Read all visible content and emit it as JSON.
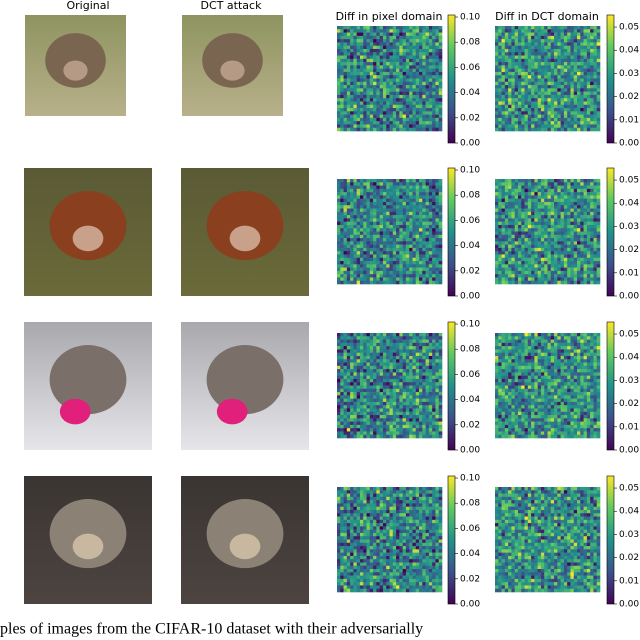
{
  "figure": {
    "column_titles": [
      "Original",
      "DCT attack",
      "Diff in pixel domain",
      "Diff in DCT domain"
    ],
    "colorbars": {
      "pixel": {
        "lim": [
          0,
          0.1016
        ],
        "ticks": [
          {
            "value": 0,
            "label": "0.00"
          },
          {
            "value": 0.02,
            "label": "0.02"
          },
          {
            "value": 0.04,
            "label": "0.04"
          },
          {
            "value": 0.06,
            "label": "0.06"
          },
          {
            "value": 0.08,
            "label": "0.08"
          },
          {
            "value": 0.1,
            "label": "0.10"
          }
        ]
      },
      "dct": {
        "lim": [
          0,
          0.0552
        ],
        "ticks": [
          {
            "value": 0,
            "label": "0.00"
          },
          {
            "value": 0.01,
            "label": "0.01"
          },
          {
            "value": 0.02,
            "label": "0.02"
          },
          {
            "value": 0.03,
            "label": "0.03"
          },
          {
            "value": 0.04,
            "label": "0.04"
          },
          {
            "value": 0.05,
            "label": "0.05"
          }
        ]
      }
    },
    "caption": "ples of images from the CIFAR-10 dataset with their adversarially"
  }
}
